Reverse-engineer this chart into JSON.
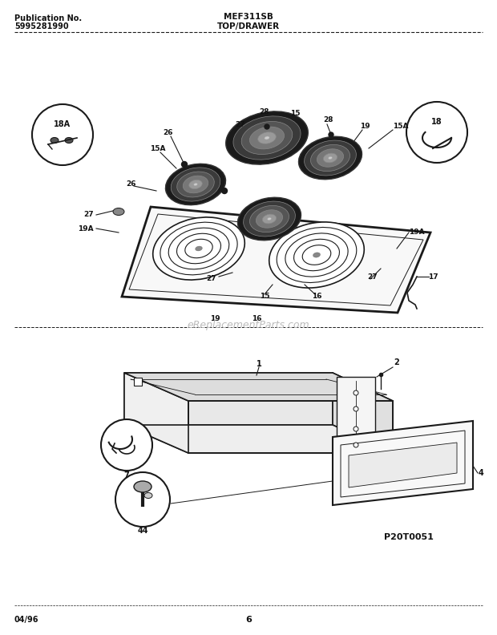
{
  "title_left_line1": "Publication No.",
  "title_left_line2": "5995281990",
  "title_center": "MEF311SB",
  "title_section": "TOP/DRAWER",
  "footer_left": "04/96",
  "footer_center": "6",
  "watermark": "eReplacementParts.com",
  "part_code": "P20T0051",
  "bg_color": "#ffffff",
  "lc": "#1a1a1a",
  "tc": "#111111"
}
